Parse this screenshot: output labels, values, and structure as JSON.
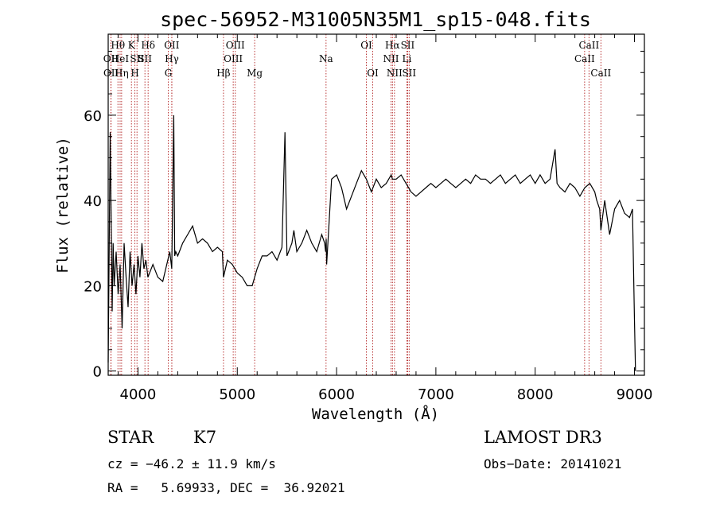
{
  "chart_data": {
    "type": "line",
    "title": "spec-56952-M31005N35M1_sp15-048.fits",
    "xlabel": "Wavelength (Å)",
    "ylabel": "Flux (relative)",
    "xlim": [
      3700,
      9100
    ],
    "ylim": [
      -1,
      79
    ],
    "xticks": [
      4000,
      5000,
      6000,
      7000,
      8000,
      9000
    ],
    "xtick_labels": [
      "4000",
      "5000",
      "6000",
      "7000",
      "8000",
      "9000"
    ],
    "yticks": [
      0,
      20,
      40,
      60
    ],
    "ytick_labels": [
      "0",
      "20",
      "40",
      "60"
    ],
    "series": [
      {
        "name": "flux",
        "x": [
          3700,
          3720,
          3740,
          3750,
          3760,
          3780,
          3800,
          3820,
          3840,
          3860,
          3880,
          3900,
          3920,
          3940,
          3960,
          3980,
          4000,
          4020,
          4040,
          4060,
          4080,
          4100,
          4150,
          4200,
          4250,
          4300,
          4320,
          4340,
          4360,
          4370,
          4380,
          4400,
          4450,
          4500,
          4550,
          4600,
          4650,
          4700,
          4750,
          4800,
          4850,
          4861,
          4900,
          4950,
          5000,
          5050,
          5100,
          5150,
          5200,
          5250,
          5300,
          5350,
          5400,
          5450,
          5480,
          5500,
          5550,
          5570,
          5600,
          5650,
          5700,
          5750,
          5800,
          5850,
          5880,
          5890,
          5895,
          5900,
          5950,
          6000,
          6050,
          6100,
          6150,
          6200,
          6250,
          6300,
          6350,
          6400,
          6450,
          6500,
          6550,
          6563,
          6600,
          6650,
          6700,
          6750,
          6800,
          6850,
          6900,
          6950,
          7000,
          7050,
          7100,
          7150,
          7200,
          7250,
          7300,
          7350,
          7400,
          7450,
          7500,
          7550,
          7600,
          7650,
          7700,
          7750,
          7800,
          7850,
          7900,
          7950,
          8000,
          8050,
          8100,
          8150,
          8200,
          8220,
          8250,
          8300,
          8350,
          8400,
          8450,
          8500,
          8550,
          8600,
          8620,
          8650,
          8662,
          8700,
          8750,
          8800,
          8850,
          8900,
          8950,
          8980,
          9000,
          9010
        ],
        "y": [
          2,
          56,
          14,
          30,
          20,
          28,
          18,
          25,
          10,
          30,
          22,
          15,
          28,
          20,
          25,
          18,
          27,
          22,
          30,
          24,
          26,
          22,
          25,
          22,
          21,
          26,
          28,
          24,
          60,
          27,
          28,
          27,
          30,
          32,
          34,
          30,
          31,
          30,
          28,
          29,
          28,
          22,
          26,
          25,
          23,
          22,
          20,
          20,
          24,
          27,
          27,
          28,
          26,
          29,
          56,
          27,
          30,
          33,
          28,
          30,
          33,
          30,
          28,
          32,
          30,
          28,
          31,
          25,
          45,
          46,
          43,
          38,
          41,
          44,
          47,
          45,
          42,
          45,
          43,
          44,
          46,
          45,
          45,
          46,
          44,
          42,
          41,
          42,
          43,
          44,
          43,
          44,
          45,
          44,
          43,
          44,
          45,
          44,
          46,
          45,
          45,
          44,
          45,
          46,
          44,
          45,
          46,
          44,
          45,
          46,
          44,
          46,
          44,
          45,
          52,
          44,
          43,
          42,
          44,
          43,
          41,
          43,
          44,
          42,
          40,
          38,
          33,
          40,
          32,
          38,
          40,
          37,
          36,
          38,
          12,
          0
        ]
      }
    ],
    "spectral_lines": [
      {
        "label": "OII",
        "wavelength": 3727,
        "row": 2
      },
      {
        "label": "OII",
        "wavelength": 3729,
        "row": 3
      },
      {
        "label": "Hθ",
        "wavelength": 3798,
        "row": 1
      },
      {
        "label": "HeI",
        "wavelength": 3820,
        "row": 2
      },
      {
        "label": "Hη",
        "wavelength": 3835,
        "row": 3
      },
      {
        "label": "K",
        "wavelength": 3934,
        "row": 1
      },
      {
        "label": "SII",
        "wavelength": 3990,
        "row": 2
      },
      {
        "label": "H",
        "wavelength": 3969,
        "row": 3
      },
      {
        "label": "Hδ",
        "wavelength": 4102,
        "row": 1
      },
      {
        "label": "SII",
        "wavelength": 4070,
        "row": 2
      },
      {
        "label": "OII",
        "wavelength": 4340,
        "row": 1
      },
      {
        "label": "Hγ",
        "wavelength": 4341,
        "row": 2
      },
      {
        "label": "G",
        "wavelength": 4305,
        "row": 3
      },
      {
        "label": "Hβ",
        "wavelength": 4861,
        "row": 3
      },
      {
        "label": "OIII",
        "wavelength": 4980,
        "row": 1
      },
      {
        "label": "OIII",
        "wavelength": 4959,
        "row": 2
      },
      {
        "label": "Mg",
        "wavelength": 5175,
        "row": 3
      },
      {
        "label": "Na",
        "wavelength": 5894,
        "row": 2
      },
      {
        "label": "OI",
        "wavelength": 6300,
        "row": 1
      },
      {
        "label": "OI",
        "wavelength": 6364,
        "row": 3
      },
      {
        "label": "Hα",
        "wavelength": 6563,
        "row": 1
      },
      {
        "label": "NII",
        "wavelength": 6548,
        "row": 2
      },
      {
        "label": "NII",
        "wavelength": 6583,
        "row": 3
      },
      {
        "label": "SII",
        "wavelength": 6716,
        "row": 1
      },
      {
        "label": "Li",
        "wavelength": 6708,
        "row": 2
      },
      {
        "label": "SII",
        "wavelength": 6731,
        "row": 3
      },
      {
        "label": "CaII",
        "wavelength": 8542,
        "row": 1
      },
      {
        "label": "CaII",
        "wavelength": 8498,
        "row": 2
      },
      {
        "label": "CaII",
        "wavelength": 8662,
        "row": 3
      }
    ],
    "line_color": "#000000",
    "marker_color": "#b22222"
  },
  "info": {
    "object_class": "STAR",
    "subclass": "K7",
    "survey": "LAMOST DR3",
    "cz": "cz = −46.2 ± 11.9 km/s",
    "obs_date": "Obs−Date: 20141021",
    "coords": "RA =   5.69933, DEC =  36.92021"
  }
}
